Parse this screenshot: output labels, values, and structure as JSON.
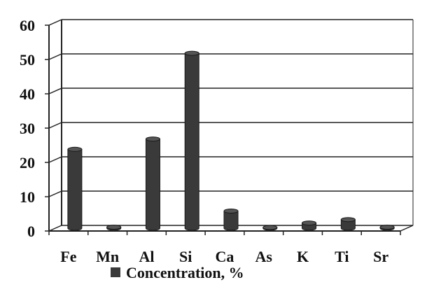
{
  "chart_data": {
    "type": "bar",
    "categories": [
      "Fe",
      "Mn",
      "Al",
      "Si",
      "Ca",
      "As",
      "K",
      "Ti",
      "Sr"
    ],
    "series": [
      {
        "name": "Concentration, %",
        "values": [
          23,
          0.3,
          26,
          51,
          5,
          0.2,
          1.5,
          2.5,
          0.3
        ]
      }
    ],
    "ylim": [
      0,
      60
    ],
    "yticks": [
      "0",
      "10",
      "20",
      "30",
      "40",
      "50",
      "60"
    ],
    "grid": true,
    "legend_position": "bottom",
    "bar_color": "#3a3a3a",
    "axis_color": "#222222"
  }
}
